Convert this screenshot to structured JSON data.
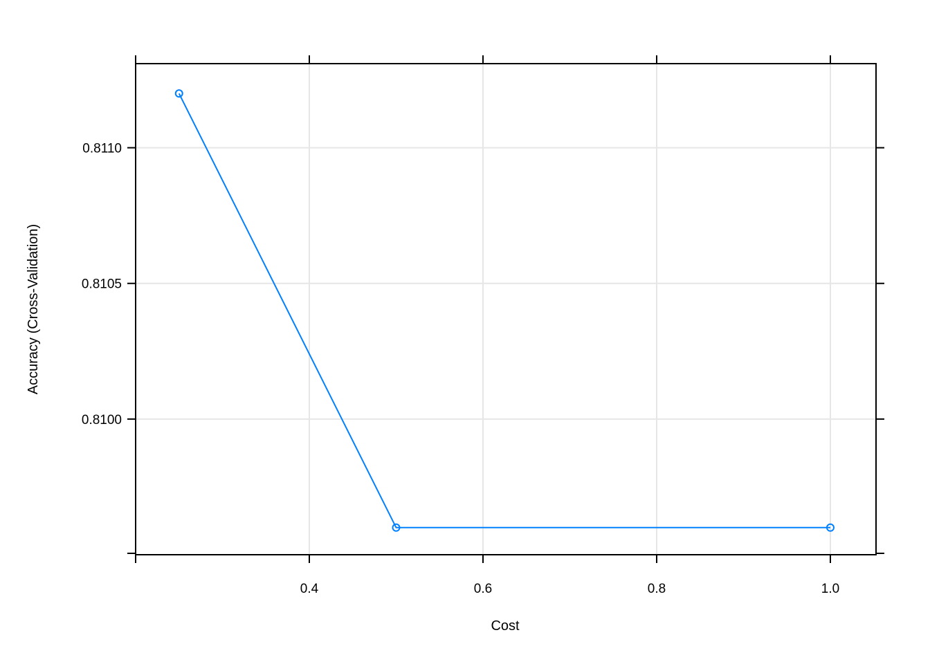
{
  "chart_data": {
    "type": "line",
    "x_label": "Cost",
    "y_label": "Accuracy (Cross-Validation)",
    "x": [
      0.25,
      0.5,
      1.0
    ],
    "series": [
      {
        "color": "#0080ff",
        "values": [
          0.8112,
          0.8096,
          0.8096
        ]
      }
    ],
    "xlim": [
      0.2,
      1.0526
    ],
    "ylim": [
      0.8095,
      0.81131
    ],
    "xticks": [
      0.4,
      0.6,
      0.8,
      {
        "value": 1.0,
        "label": "1.0"
      }
    ],
    "yticks": [
      {
        "value": 0.811,
        "label": "0.8110"
      },
      0.8105,
      {
        "value": 0.81,
        "label": "0.8100"
      }
    ],
    "grid": true
  }
}
